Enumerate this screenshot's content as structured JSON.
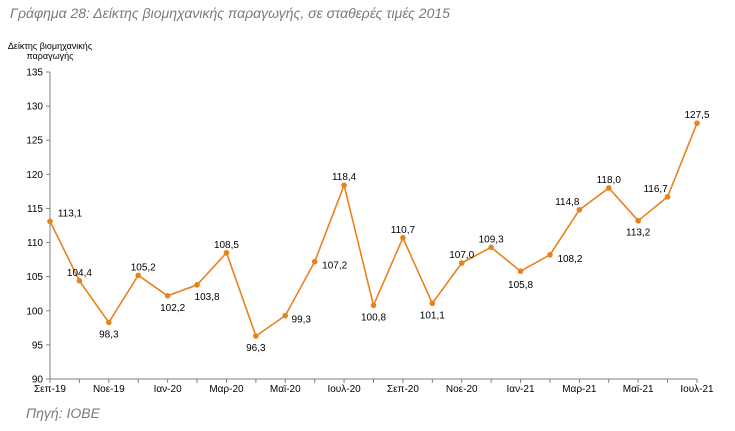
{
  "title": "Γράφημα 28: Δείκτης βιομηχανικής παραγωγής, σε σταθερές τιμές 2015",
  "source": "Πηγή: ΙΟΒΕ",
  "colors": {
    "series": "#e8821e",
    "axis": "#808080"
  },
  "chart_data": {
    "type": "line",
    "ylabel": [
      "Δείκτης βιομηχανικής",
      "παραγωγής"
    ],
    "xlabel": "",
    "ylim": [
      90,
      135
    ],
    "yticks": [
      90,
      95,
      100,
      105,
      110,
      115,
      120,
      125,
      130,
      135
    ],
    "xtick_labels": [
      "Σεπ-19",
      "Νοε-19",
      "Ιαν-20",
      "Μαρ-20",
      "Μαϊ-20",
      "Ιουλ-20",
      "Σεπ-20",
      "Νοε-20",
      "Ιαν-21",
      "Μαρ-21",
      "Μαϊ-21",
      "Ιουλ-21"
    ],
    "months": [
      "Σεπ-19",
      "Οκτ-19",
      "Νοε-19",
      "Δεκ-19",
      "Ιαν-20",
      "Φεβ-20",
      "Μαρ-20",
      "Απρ-20",
      "Μαϊ-20",
      "Ιουν-20",
      "Ιουλ-20",
      "Αυγ-20",
      "Σεπ-20",
      "Οκτ-20",
      "Νοε-20",
      "Δεκ-20",
      "Ιαν-21",
      "Φεβ-21",
      "Μαρ-21",
      "Απρ-21",
      "Μαϊ-21",
      "Ιουν-21",
      "Ιουλ-21"
    ],
    "values": [
      113.1,
      104.4,
      98.3,
      105.2,
      102.2,
      103.8,
      108.5,
      96.3,
      99.3,
      107.2,
      118.4,
      100.8,
      110.7,
      101.1,
      107.0,
      109.3,
      105.8,
      108.2,
      114.8,
      118.0,
      113.2,
      116.7,
      127.5
    ],
    "value_labels": [
      "113,1",
      "104,4",
      "98,3",
      "105,2",
      "102,2",
      "103,8",
      "108,5",
      "96,3",
      "99,3",
      "107,2",
      "118,4",
      "100,8",
      "110,7",
      "101,1",
      "107,0",
      "109,3",
      "105,8",
      "108,2",
      "114,8",
      "118,0",
      "113,2",
      "116,7",
      "127,5"
    ],
    "grid": false,
    "legend": "none"
  }
}
